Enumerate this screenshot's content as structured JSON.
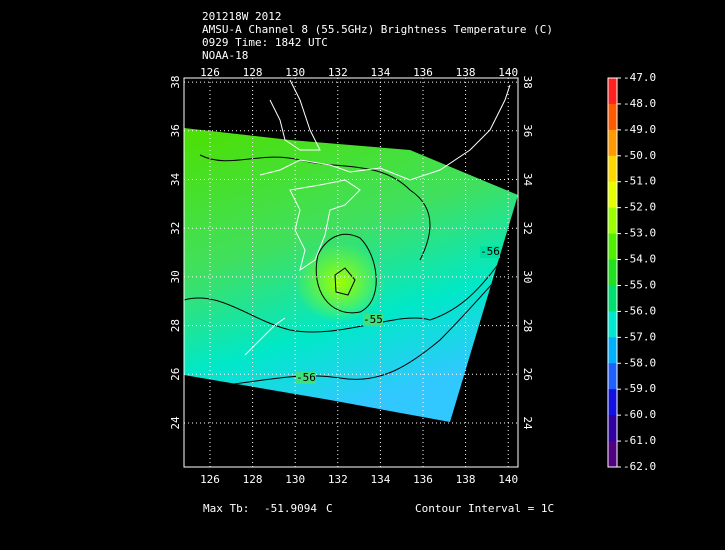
{
  "header": {
    "lines": [
      "201218W 2012",
      "AMSU-A Channel 8 (55.5GHz) Brightness Temperature (C)",
      "0929 Time: 1842 UTC",
      "NOAA-18"
    ]
  },
  "map": {
    "lon_labels": [
      "126",
      "128",
      "130",
      "132",
      "134",
      "136",
      "138",
      "140"
    ],
    "lat_labels": [
      "24",
      "26",
      "28",
      "30",
      "32",
      "34",
      "36",
      "38"
    ],
    "contour_labels": [
      "-56",
      "-55",
      "-56"
    ]
  },
  "colorbar": {
    "labels": [
      "-47.0",
      "-48.0",
      "-49.0",
      "-50.0",
      "-51.0",
      "-52.0",
      "-53.0",
      "-54.0",
      "-55.0",
      "-56.0",
      "-57.0",
      "-58.0",
      "-59.0",
      "-60.0",
      "-61.0",
      "-62.0"
    ],
    "colors": [
      "#ff2020",
      "#ff5a00",
      "#ff9a00",
      "#ffd800",
      "#e6ff00",
      "#9cff00",
      "#50f000",
      "#20e020",
      "#00e070",
      "#00e8d0",
      "#00b0ff",
      "#2060ff",
      "#1010e0",
      "#3000a0",
      "#500080",
      "#300040"
    ]
  },
  "footer": {
    "max_label": "Max Tb:",
    "max_value": "-51.9094",
    "max_unit": "C",
    "contour_interval": "Contour Interval = 1C"
  }
}
